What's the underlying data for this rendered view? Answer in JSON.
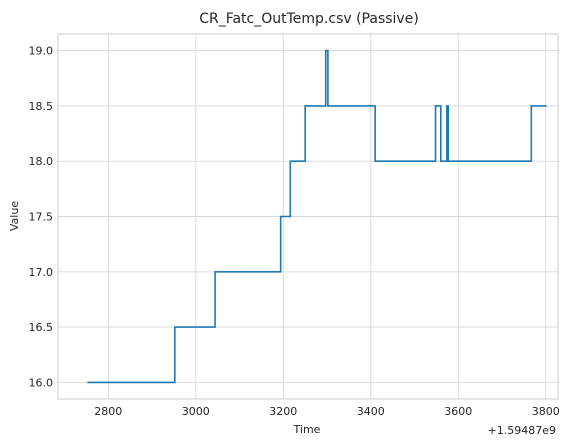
{
  "chart_data": {
    "type": "line",
    "title": "CR_Fatc_OutTemp.csv (Passive)",
    "xlabel": "Time",
    "ylabel": "Value",
    "offset_text": "+1.59487e9",
    "xlim": [
      2685,
      3828
    ],
    "ylim": [
      15.85,
      19.15
    ],
    "xticks": [
      2800,
      3000,
      3200,
      3400,
      3600,
      3800
    ],
    "yticks": [
      16.0,
      16.5,
      17.0,
      17.5,
      18.0,
      18.5,
      19.0
    ],
    "xtick_labels": [
      "2800",
      "3000",
      "3200",
      "3400",
      "3600",
      "3800"
    ],
    "ytick_labels": [
      "16.0",
      "16.5",
      "17.0",
      "17.5",
      "18.0",
      "18.5",
      "19.0"
    ],
    "grid": true,
    "line_color": "#1f77b4",
    "series": [
      {
        "drawstyle": "steps-post",
        "x": [
          2752,
          2952,
          3044,
          3194,
          3216,
          3250,
          3297,
          3302,
          3410,
          3548,
          3560,
          3574,
          3577,
          3767,
          3802
        ],
        "y": [
          16.0,
          16.5,
          17.0,
          17.5,
          18.0,
          18.5,
          19.0,
          18.5,
          18.0,
          18.5,
          18.0,
          18.5,
          18.0,
          18.5,
          18.5
        ]
      }
    ]
  }
}
